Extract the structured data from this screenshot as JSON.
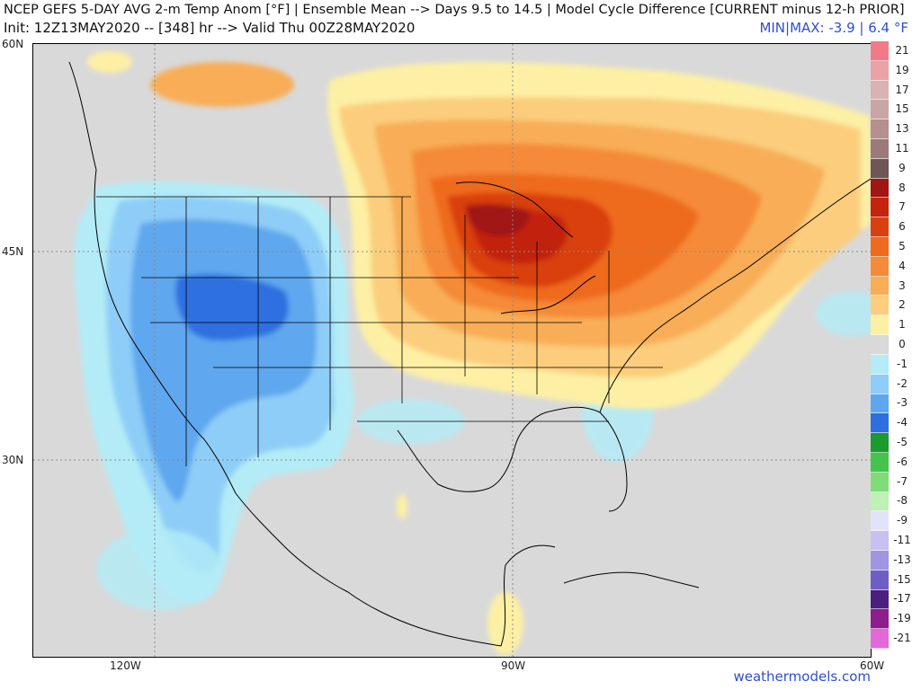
{
  "header": {
    "title_line1": "NCEP GEFS 5-DAY AVG 2-m Temp Anom [°F] | Ensemble Mean --> Days 9.5 to 14.5 | Model Cycle Difference [CURRENT minus 12-h PRIOR]",
    "title_line2": "Init: 12Z13MAY2020 -- [348] hr --> Valid Thu 00Z28MAY2020",
    "minmax": "MIN|MAX: -3.9 | 6.4 °F"
  },
  "axes": {
    "lat_labels": [
      "60N",
      "45N",
      "30N"
    ],
    "lon_labels": [
      "120W",
      "90W",
      "60W"
    ]
  },
  "legend": {
    "labels": [
      "21",
      "19",
      "17",
      "15",
      "13",
      "11",
      "9",
      "8",
      "7",
      "6",
      "5",
      "4",
      "3",
      "2",
      "1",
      "0",
      "-1",
      "-2",
      "-3",
      "-4",
      "-5",
      "-6",
      "-7",
      "-8",
      "-9",
      "-11",
      "-13",
      "-15",
      "-17",
      "-19",
      "-21"
    ],
    "colors": [
      "#f07a8a",
      "#e9a2a6",
      "#d8b3b3",
      "#c9a6a6",
      "#b68f8f",
      "#9c7a7a",
      "#6e5656",
      "#a11612",
      "#c2240e",
      "#d9400f",
      "#ee6a1f",
      "#f58a38",
      "#f8ad57",
      "#fbcd7c",
      "#fdf0a4",
      "#d9d9d9",
      "#b3ecf7",
      "#8ecdf7",
      "#5ea7ee",
      "#2d6fe0",
      "#1b9a2f",
      "#44c44a",
      "#80dc78",
      "#bff0b7",
      "#e2e2fa",
      "#c7c0f0",
      "#9f95e0",
      "#6e5ec4",
      "#4a1f7d",
      "#8e1e8c",
      "#e16ad8"
    ]
  },
  "watermark": "weathermodels.com"
}
